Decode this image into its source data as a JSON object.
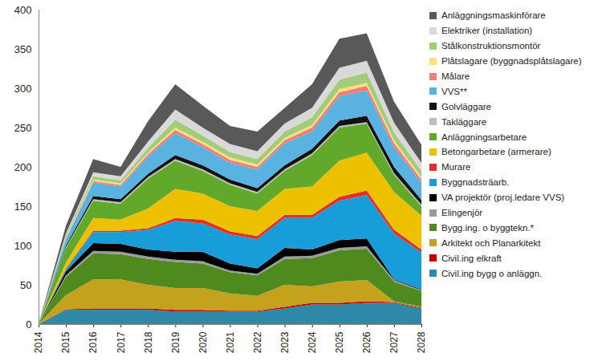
{
  "chart_data": {
    "type": "area",
    "stacked": true,
    "legend": "right",
    "grid": false,
    "x": [
      2014,
      2015,
      2016,
      2017,
      2018,
      2019,
      2020,
      2021,
      2022,
      2023,
      2024,
      2025,
      2026,
      2027,
      2028
    ],
    "xlim": [
      2014,
      2028
    ],
    "xticks": [
      2014,
      2015,
      2016,
      2017,
      2018,
      2019,
      2020,
      2021,
      2022,
      2023,
      2024,
      2025,
      2026,
      2027,
      2028
    ],
    "ylim": [
      0,
      400
    ],
    "yticks": [
      0,
      50,
      100,
      150,
      200,
      250,
      300,
      350,
      400
    ],
    "series": [
      {
        "name": "Civil.ing bygg o anläggn.",
        "color": "#2E88A8",
        "values": [
          0,
          18,
          18,
          18,
          18,
          16,
          16,
          16,
          16,
          20,
          25,
          25,
          27,
          27,
          20
        ]
      },
      {
        "name": "Civil.ing elkraft",
        "color": "#C00000",
        "values": [
          0,
          1,
          2,
          2,
          2,
          2,
          2,
          1,
          1,
          2,
          2,
          2,
          2,
          1,
          1
        ]
      },
      {
        "name": "Arkitekt och Planarkitekt",
        "color": "#C4A21E",
        "values": [
          0,
          18,
          37,
          37,
          30,
          28,
          28,
          22,
          19,
          28,
          21,
          27,
          27,
          1,
          1
        ]
      },
      {
        "name": "Bygg.ing. o byggtekn.*",
        "color": "#4F8A1E",
        "values": [
          0,
          23,
          33,
          32,
          33,
          33,
          31,
          27,
          26,
          33,
          36,
          40,
          40,
          25,
          20
        ]
      },
      {
        "name": "Elingenjör",
        "color": "#9A9A9A",
        "values": [
          0,
          2,
          3,
          3,
          3,
          3,
          3,
          2,
          2,
          3,
          3,
          3,
          3,
          2,
          1
        ]
      },
      {
        "name": "VA projektör (proj.ledare VVS)",
        "color": "#000000",
        "values": [
          0,
          5,
          10,
          10,
          9,
          10,
          12,
          9,
          7,
          11,
          8,
          10,
          10,
          1,
          1
        ]
      },
      {
        "name": "Byggnadsträarb.",
        "color": "#179ED8",
        "values": [
          0,
          3,
          14,
          15,
          25,
          39,
          36,
          37,
          37,
          38,
          40,
          50,
          55,
          58,
          47
        ]
      },
      {
        "name": "Murare",
        "color": "#E0302A",
        "values": [
          0,
          1,
          2,
          2,
          2,
          4,
          5,
          4,
          4,
          4,
          4,
          5,
          6,
          5,
          4
        ]
      },
      {
        "name": "Betongarbetare (armerare)",
        "color": "#EDC000",
        "values": [
          0,
          7,
          16,
          14,
          25,
          37,
          33,
          32,
          32,
          33,
          36,
          46,
          48,
          48,
          43
        ]
      },
      {
        "name": "Anläggningsarbetare",
        "color": "#62A82A",
        "values": [
          0,
          19,
          22,
          20,
          38,
          36,
          29,
          27,
          22,
          23,
          40,
          42,
          37,
          22,
          12
        ]
      },
      {
        "name": "Takläggare",
        "color": "#BDBDBD",
        "values": [
          0,
          1,
          2,
          2,
          2,
          2,
          2,
          2,
          2,
          2,
          2,
          2,
          2,
          2,
          2
        ]
      },
      {
        "name": "Golvläggare",
        "color": "#111111",
        "values": [
          0,
          2,
          4,
          4,
          4,
          5,
          5,
          5,
          5,
          5,
          6,
          7,
          8,
          8,
          6
        ]
      },
      {
        "name": "VVS**",
        "color": "#5AB2E0",
        "values": [
          0,
          8,
          17,
          16,
          22,
          28,
          23,
          21,
          24,
          28,
          22,
          31,
          32,
          25,
          22
        ]
      },
      {
        "name": "Målare",
        "color": "#F07C7C",
        "values": [
          0,
          1,
          2,
          2,
          3,
          4,
          4,
          4,
          3,
          4,
          5,
          5,
          6,
          5,
          4
        ]
      },
      {
        "name": "Plåtslagare (byggnadsplåtslagare)",
        "color": "#FBE07A",
        "values": [
          0,
          1,
          2,
          2,
          2,
          3,
          3,
          3,
          3,
          3,
          3,
          4,
          4,
          4,
          3
        ]
      },
      {
        "name": "Stålkonstruktionsmontör",
        "color": "#A2CB7A",
        "values": [
          0,
          3,
          4,
          4,
          6,
          10,
          8,
          7,
          7,
          8,
          10,
          12,
          13,
          10,
          8
        ]
      },
      {
        "name": "Elektriker (installation)",
        "color": "#D9D9D9",
        "values": [
          0,
          2,
          5,
          5,
          8,
          13,
          10,
          10,
          10,
          10,
          12,
          15,
          15,
          12,
          10
        ]
      },
      {
        "name": "Anläggningsmaskinförare",
        "color": "#595959",
        "values": [
          0,
          10,
          17,
          12,
          26,
          32,
          28,
          23,
          25,
          20,
          30,
          37,
          35,
          27,
          23
        ]
      }
    ]
  }
}
